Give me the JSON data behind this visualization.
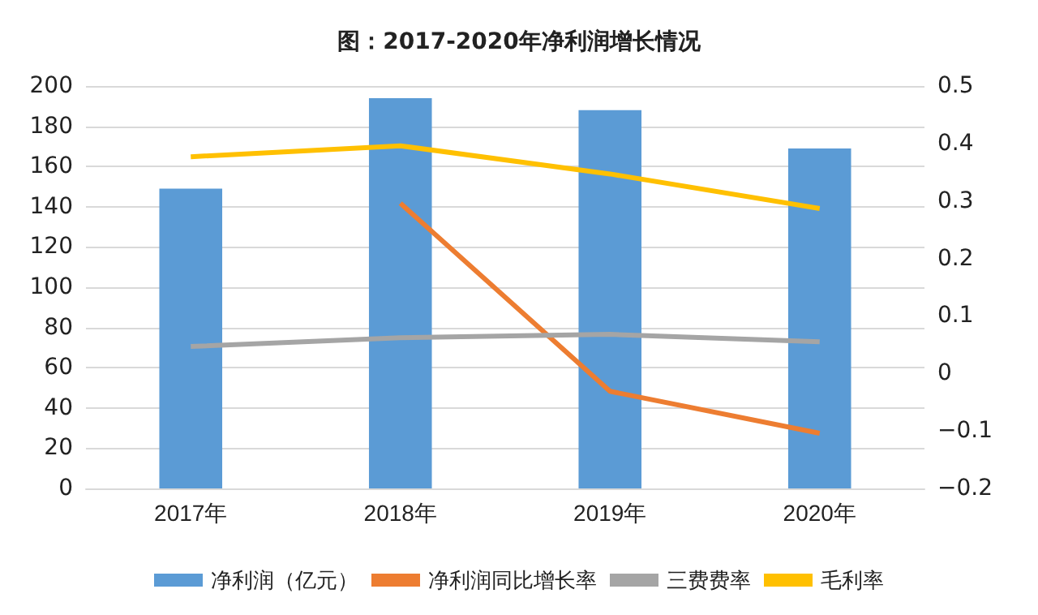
{
  "chart_data": {
    "type": "bar",
    "title": "图：2017-2020年净利润增长情况",
    "categories": [
      "2017年",
      "2018年",
      "2019年",
      "2020年"
    ],
    "series": [
      {
        "name": "净利润（亿元）",
        "color": "#5b9bd5",
        "values": [
          149,
          194,
          188,
          169
        ]
      },
      {
        "name": "净利润同比增长率",
        "type": "line",
        "axis": "y2",
        "color": "#ed7d31",
        "values": [
          null,
          0.296,
          -0.031,
          -0.104
        ]
      },
      {
        "name": "三费费率",
        "type": "line",
        "axis": "y2",
        "color": "#a5a5a5",
        "values": [
          0.047,
          0.062,
          0.068,
          0.055
        ]
      },
      {
        "name": "毛利率",
        "type": "line",
        "axis": "y2",
        "color": "#ffc000",
        "values": [
          0.377,
          0.396,
          0.347,
          0.287
        ]
      }
    ],
    "ylim": [
      0,
      200
    ],
    "yticks": [
      0,
      20,
      40,
      60,
      80,
      100,
      120,
      140,
      160,
      180,
      200
    ],
    "y2lim": [
      -0.2,
      0.5
    ],
    "y2ticks": [
      {
        "value": -0.2,
        "label": "−0.2"
      },
      {
        "value": -0.1,
        "label": "−0.1"
      },
      0,
      0.1,
      0.2,
      0.3,
      0.4,
      0.5
    ],
    "grid": "y",
    "legend": "bottom",
    "marker": "none",
    "line_style": "solid"
  }
}
